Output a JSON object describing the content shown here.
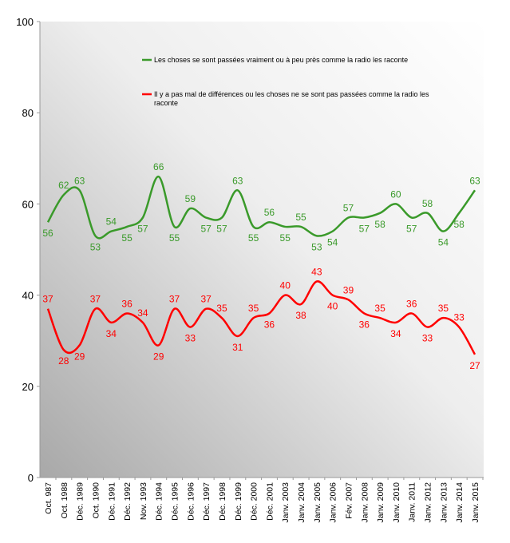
{
  "chart_data": {
    "type": "line",
    "title": "",
    "xlabel": "",
    "ylabel": "",
    "ylim": [
      0,
      100
    ],
    "yticks": [
      0,
      20,
      40,
      60,
      80,
      100
    ],
    "grid": false,
    "legend_position": "top-center",
    "categories": [
      "Oct. 987",
      "Oct. 1988",
      "Déc. 1989",
      "Oct. 1990",
      "Déc. 1991",
      "Déc. 1992",
      "Nov. 1993",
      "Déc. 1994",
      "Déc. 1995",
      "Déc. 1996",
      "Déc. 1997",
      "Déc. 1998",
      "Déc. 1999",
      "Déc. 2000",
      "Déc. 2001",
      "Janv. 2003",
      "Janv. 2004",
      "Janv. 2005",
      "Janv. 2006",
      "Fév. 2007",
      "Janv. 2008",
      "Janv. 2009",
      "Janv. 2010",
      "Janv. 2011",
      "Janv. 2012",
      "Janv. 2013",
      "Janv. 2014",
      "Janv. 2015"
    ],
    "series": [
      {
        "name": "Les choses se sont passées vraiment ou à peu près comme la radio les raconte",
        "color": "#3a9a2a",
        "values": [
          56,
          62,
          63,
          53,
          54,
          55,
          57,
          66,
          55,
          59,
          57,
          57,
          63,
          55,
          56,
          55,
          55,
          53,
          54,
          57,
          57,
          58,
          60,
          57,
          58,
          54,
          58,
          63
        ]
      },
      {
        "name": "Il y a pas mal de différences ou les choses ne se sont pas passées comme la radio les raconte",
        "color": "#ff0000",
        "values": [
          37,
          28,
          29,
          37,
          34,
          36,
          34,
          29,
          37,
          33,
          37,
          35,
          31,
          35,
          36,
          40,
          38,
          43,
          40,
          39,
          36,
          35,
          34,
          36,
          33,
          35,
          33,
          27
        ]
      }
    ]
  }
}
